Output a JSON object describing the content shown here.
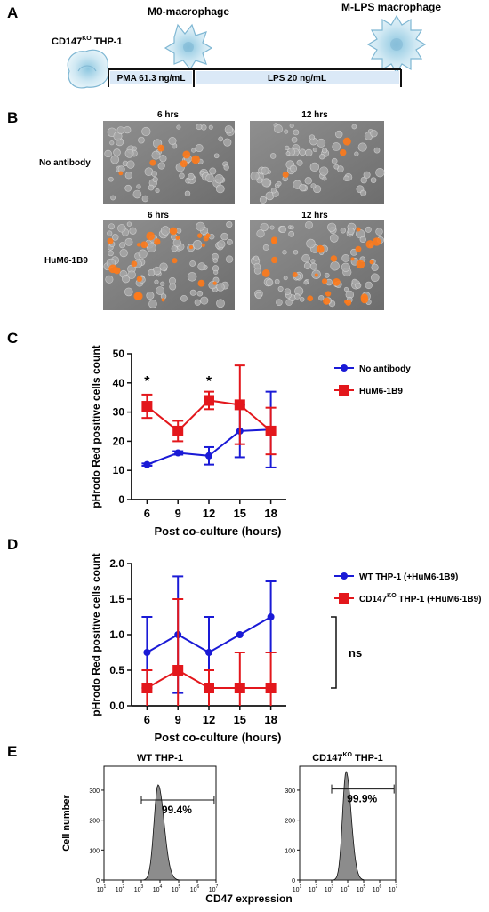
{
  "panel_a": {
    "letter": "A",
    "cell_thp1_prefix": "CD147",
    "cell_thp1_sup": "KO",
    "cell_thp1_suffix": " THP-1",
    "m0": "M0-macrophage",
    "mlps": "M-LPS macrophage",
    "pma": "PMA 61.3 ng/mL",
    "lps": "LPS 20 ng/mL"
  },
  "panel_b": {
    "letter": "B",
    "col_6": "6 hrs",
    "col_12": "12 hrs",
    "row_no_antibody": "No antibody",
    "row_hum": "HuM6-1B9"
  },
  "chart_data": [
    {
      "id": "C",
      "type": "line",
      "ylabel": "pHrodo Red positive cells count",
      "xlabel": "Post co-culture (hours)",
      "x": [
        6,
        9,
        12,
        15,
        18
      ],
      "xlim": [
        4.5,
        19.5
      ],
      "ylim": [
        0,
        50
      ],
      "yticks": [
        "0",
        "10",
        "20",
        "30",
        "40",
        "50"
      ],
      "series": [
        {
          "name": "No antibody",
          "color": "#1a1ad6",
          "marker": "circle",
          "values": [
            12,
            16,
            15,
            23.5,
            24
          ],
          "err": [
            0.4,
            0.6,
            3,
            9,
            13
          ]
        },
        {
          "name": "HuM6-1B9",
          "color": "#e3171c",
          "marker": "square",
          "values": [
            32,
            23.5,
            34,
            32.5,
            23.5
          ],
          "err": [
            4,
            3.5,
            3,
            13.5,
            8
          ]
        }
      ],
      "annotations": [
        {
          "x": 6,
          "y": 39,
          "text": "*"
        },
        {
          "x": 12,
          "y": 39,
          "text": "*"
        }
      ]
    },
    {
      "id": "D",
      "type": "line",
      "ylabel": "pHrodo Red positive cells count",
      "xlabel": "Post co-culture (hours)",
      "x": [
        6,
        9,
        12,
        15,
        18
      ],
      "xlim": [
        4.5,
        19.5
      ],
      "ylim": [
        0,
        2.0
      ],
      "yticks": [
        "0.0",
        "0.5",
        "1.0",
        "1.5",
        "2.0"
      ],
      "series": [
        {
          "name_prefix": "WT THP-1 (+HuM6-1B9)",
          "name_sup": "",
          "name_suffix": "",
          "color": "#1a1ad6",
          "marker": "circle",
          "values": [
            0.75,
            1.0,
            0.75,
            1.0,
            1.25
          ],
          "err": [
            0.5,
            0.82,
            0.5,
            0,
            0.5
          ]
        },
        {
          "name_prefix": "CD147",
          "name_sup": "KO",
          "name_suffix": " THP-1 (+HuM6-1B9)",
          "color": "#e3171c",
          "marker": "square",
          "values": [
            0.25,
            0.5,
            0.25,
            0.25,
            0.25
          ],
          "err": [
            0.25,
            1.0,
            0.25,
            0.5,
            0.5
          ]
        }
      ],
      "bracket_label": "ns"
    },
    {
      "id": "E",
      "type": "histogram",
      "ylabel": "Cell number",
      "xlabel": "CD47 expression",
      "yticks": [
        "0",
        "100",
        "200",
        "300"
      ],
      "ylim": [
        0,
        380
      ],
      "xlog_range": [
        1,
        7
      ],
      "xticks": [
        "10",
        "10",
        "10",
        "10",
        "10",
        "10",
        "10"
      ],
      "xtick_exps": [
        "1",
        "2",
        "3",
        "4",
        "5",
        "6",
        "7"
      ],
      "panels": [
        {
          "title_prefix": "WT THP-1",
          "title_sup": "",
          "title_suffix": "",
          "gate_label": "99.4%",
          "peak_log": 3.9,
          "peak_count": 318
        },
        {
          "title_prefix": "CD147",
          "title_sup": "KO",
          "title_suffix": " THP-1",
          "gate_label": "99.9%",
          "peak_log": 3.9,
          "peak_count": 362
        }
      ]
    }
  ],
  "colors": {
    "blue": "#1a1ad6",
    "red": "#e3171c",
    "bar_fill": "#dbe9f7",
    "cell_fill": "#cfe6f2",
    "cell_stroke": "#7fb7d3"
  }
}
